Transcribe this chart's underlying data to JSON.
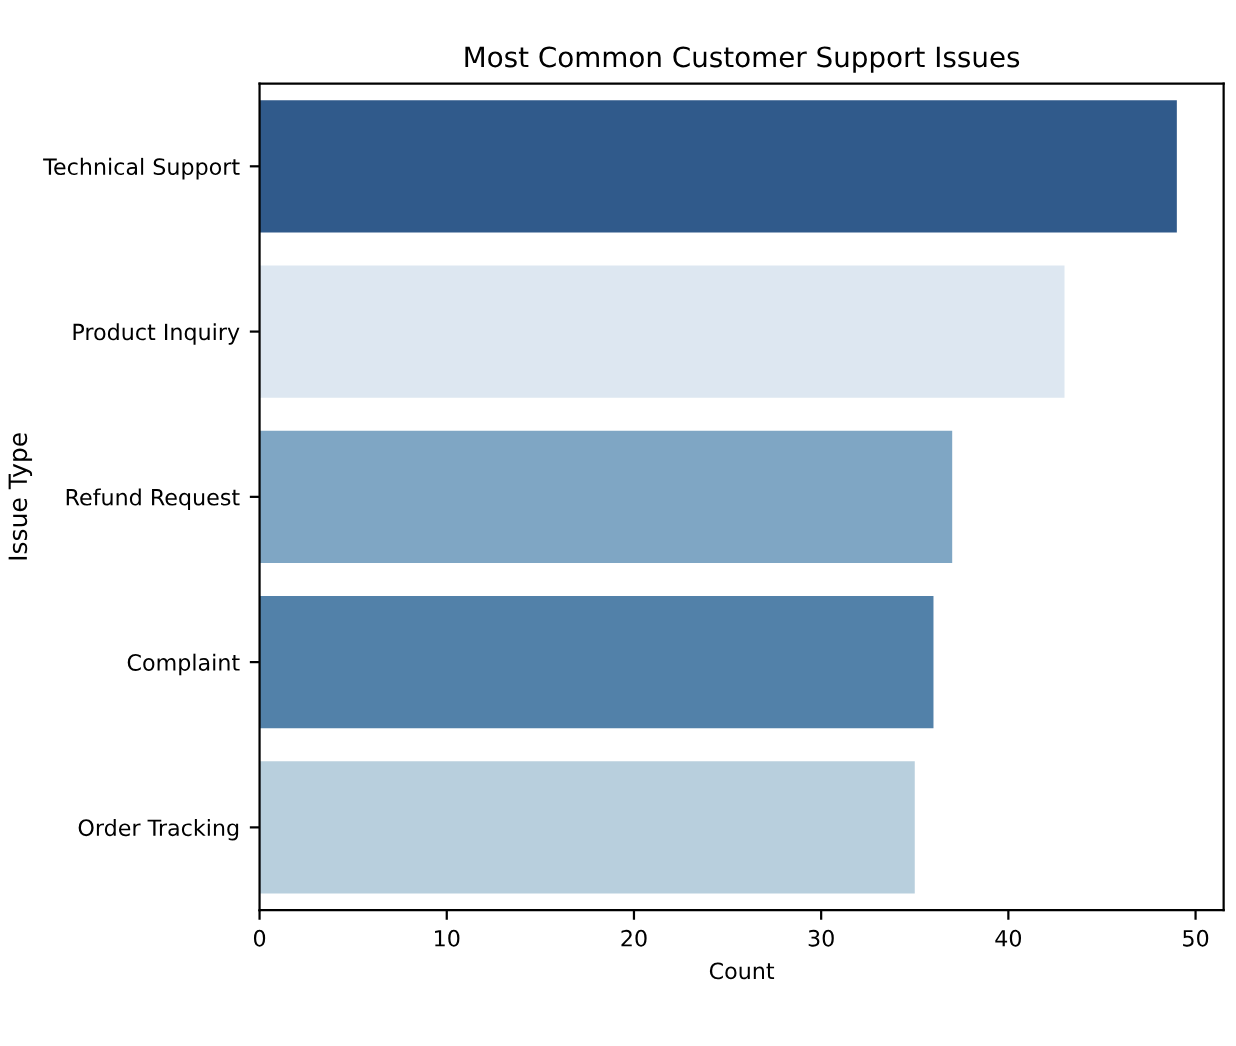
{
  "chart_data": {
    "type": "bar",
    "orientation": "horizontal",
    "title": "Most Common Customer Support Issues",
    "xlabel": "Count",
    "ylabel": "Issue Type",
    "categories": [
      "Technical Support",
      "Product Inquiry",
      "Refund Request",
      "Complaint",
      "Order Tracking"
    ],
    "values": [
      49,
      43,
      37,
      36,
      35
    ],
    "colors": [
      "#21599a",
      "#dae7f4",
      "#74a8cf",
      "#4382b8",
      "#b2d0e3"
    ],
    "xlim": [
      0,
      51.5
    ],
    "xticks": [
      0,
      10,
      20,
      30,
      40,
      50
    ],
    "grid": false,
    "legend": false
  }
}
